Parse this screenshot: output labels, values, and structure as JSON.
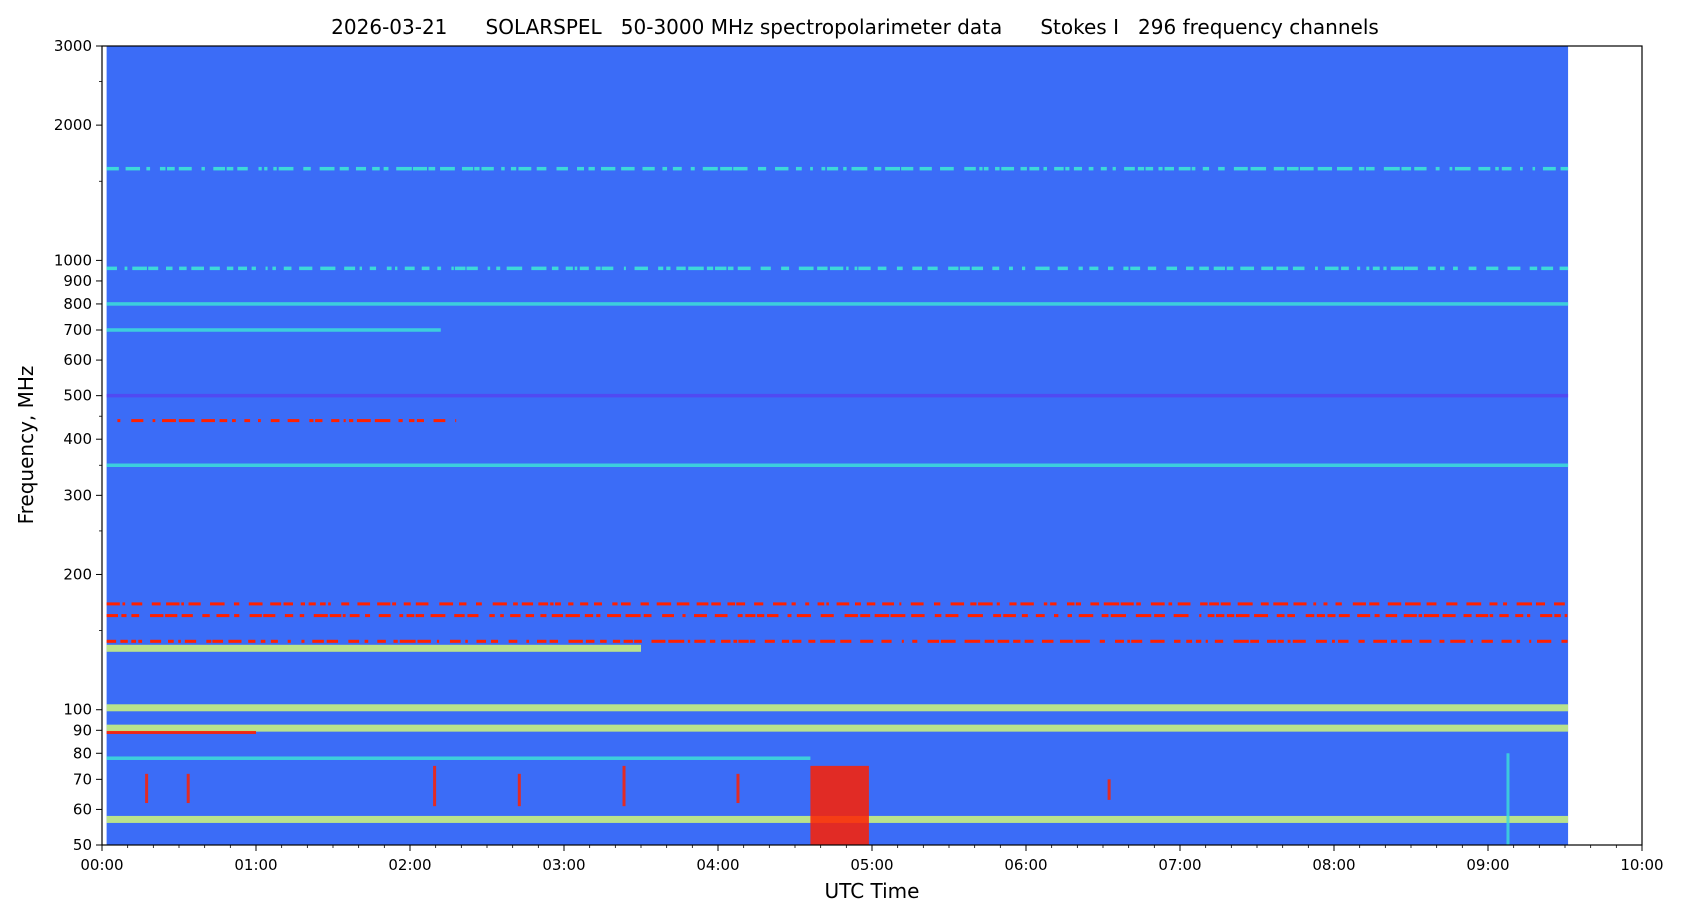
{
  "chart_data": {
    "type": "heatmap",
    "title": "2026-03-21      SOLARSPEL   50-3000 MHz spectropolarimeter data      Stokes I   296 frequency channels",
    "xlabel": "UTC Time",
    "ylabel": "Frequency, MHz",
    "x_range_hours": [
      0,
      10
    ],
    "y_range_mhz": [
      50,
      3000
    ],
    "y_scale": "log",
    "data_coverage_hours": [
      0.03,
      9.52
    ],
    "x_ticks": [
      {
        "value": 0,
        "label": "00:00"
      },
      {
        "value": 1,
        "label": "01:00"
      },
      {
        "value": 2,
        "label": "02:00"
      },
      {
        "value": 3,
        "label": "03:00"
      },
      {
        "value": 4,
        "label": "04:00"
      },
      {
        "value": 5,
        "label": "05:00"
      },
      {
        "value": 6,
        "label": "06:00"
      },
      {
        "value": 7,
        "label": "07:00"
      },
      {
        "value": 8,
        "label": "08:00"
      },
      {
        "value": 9,
        "label": "09:00"
      },
      {
        "value": 10,
        "label": "10:00"
      }
    ],
    "y_ticks": [
      {
        "value": 50,
        "label": "50"
      },
      {
        "value": 60,
        "label": "60"
      },
      {
        "value": 70,
        "label": "70"
      },
      {
        "value": 80,
        "label": "80"
      },
      {
        "value": 90,
        "label": "90"
      },
      {
        "value": 100,
        "label": "100"
      },
      {
        "value": 200,
        "label": "200"
      },
      {
        "value": 300,
        "label": "300"
      },
      {
        "value": 400,
        "label": "400"
      },
      {
        "value": 500,
        "label": "500"
      },
      {
        "value": 600,
        "label": "600"
      },
      {
        "value": 700,
        "label": "700"
      },
      {
        "value": 800,
        "label": "800"
      },
      {
        "value": 900,
        "label": "900"
      },
      {
        "value": 1000,
        "label": "1000"
      },
      {
        "value": 2000,
        "label": "2000"
      },
      {
        "value": 3000,
        "label": "3000"
      }
    ],
    "y_minor_ticks": [
      150,
      250,
      350,
      450,
      1500,
      2500
    ],
    "colormap": "rainbow",
    "colors": {
      "background": "#3b6cf7",
      "low": "#5a3cf0",
      "mid": "#3dd9d9",
      "high": "#c8f080",
      "peak": "#ff2000"
    },
    "bands": [
      {
        "freq_mhz": 1600,
        "t_start": 0.03,
        "t_end": 9.52,
        "level": "mid",
        "intermittent": true
      },
      {
        "freq_mhz": 960,
        "t_start": 0.03,
        "t_end": 9.52,
        "level": "mid",
        "intermittent": true
      },
      {
        "freq_mhz": 800,
        "t_start": 0.03,
        "t_end": 9.52,
        "level": "mid",
        "intermittent": false
      },
      {
        "freq_mhz": 700,
        "t_start": 0.03,
        "t_end": 2.2,
        "level": "mid",
        "intermittent": false
      },
      {
        "freq_mhz": 500,
        "t_start": 0.03,
        "t_end": 9.52,
        "level": "low",
        "intermittent": false
      },
      {
        "freq_mhz": 440,
        "t_start": 0.1,
        "t_end": 2.3,
        "level": "peak",
        "intermittent": true
      },
      {
        "freq_mhz": 350,
        "t_start": 0.03,
        "t_end": 9.52,
        "level": "mid",
        "intermittent": false
      },
      {
        "freq_mhz": 172,
        "t_start": 0.03,
        "t_end": 9.52,
        "level": "peak",
        "intermittent": true
      },
      {
        "freq_mhz": 162,
        "t_start": 0.03,
        "t_end": 9.52,
        "level": "peak",
        "intermittent": true
      },
      {
        "freq_mhz": 142,
        "t_start": 0.03,
        "t_end": 9.52,
        "level": "peak",
        "intermittent": true
      },
      {
        "freq_mhz": 137,
        "t_start": 0.03,
        "t_end": 3.5,
        "level": "high",
        "intermittent": false
      },
      {
        "freq_mhz": 101,
        "t_start": 0.03,
        "t_end": 9.52,
        "level": "high",
        "intermittent": false
      },
      {
        "freq_mhz": 91,
        "t_start": 0.03,
        "t_end": 9.52,
        "level": "high",
        "intermittent": false
      },
      {
        "freq_mhz": 89,
        "t_start": 0.03,
        "t_end": 1.0,
        "level": "peak",
        "intermittent": false
      },
      {
        "freq_mhz": 78,
        "t_start": 0.03,
        "t_end": 4.6,
        "level": "mid",
        "intermittent": false
      },
      {
        "freq_mhz": 57,
        "t_start": 0.03,
        "t_end": 9.52,
        "level": "high",
        "intermittent": false
      }
    ],
    "bursts": [
      {
        "t": 0.28,
        "f_low": 62,
        "f_high": 72,
        "level": "peak"
      },
      {
        "t": 0.55,
        "f_low": 62,
        "f_high": 72,
        "level": "peak"
      },
      {
        "t": 2.15,
        "f_low": 61,
        "f_high": 75,
        "level": "peak"
      },
      {
        "t": 2.7,
        "f_low": 61,
        "f_high": 72,
        "level": "peak"
      },
      {
        "t": 3.38,
        "f_low": 61,
        "f_high": 75,
        "level": "peak"
      },
      {
        "t": 4.12,
        "f_low": 62,
        "f_high": 72,
        "level": "peak"
      },
      {
        "t": 4.6,
        "f_low": 50,
        "f_high": 75,
        "t_end": 4.98,
        "level": "peak"
      },
      {
        "t": 6.53,
        "f_low": 63,
        "f_high": 70,
        "level": "peak"
      },
      {
        "t": 9.12,
        "f_low": 50,
        "f_high": 80,
        "level": "mid"
      }
    ]
  }
}
